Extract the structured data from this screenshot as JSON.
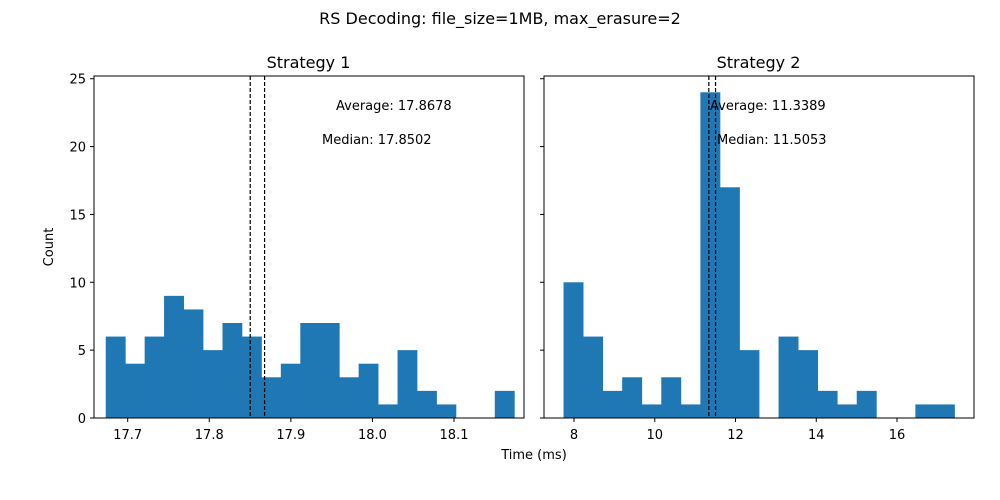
{
  "figure": {
    "title": "RS Decoding: file_size=1MB, max_erasure=2",
    "xlabel": "Time (ms)",
    "ylabel": "Count"
  },
  "chart_data": [
    {
      "type": "bar",
      "title": "Strategy 1",
      "xlim": [
        17.6587,
        18.1858
      ],
      "ylim": [
        0,
        25.2
      ],
      "xticks": [
        17.7,
        17.8,
        17.9,
        18.0,
        18.1
      ],
      "xtick_labels": [
        "17.7",
        "17.8",
        "17.9",
        "18.0",
        "18.1"
      ],
      "yticks": [
        0,
        5,
        10,
        15,
        20,
        25
      ],
      "ytick_labels": [
        "0",
        "5",
        "10",
        "15",
        "20",
        "25"
      ],
      "bin_edges": [
        17.6731,
        17.697,
        17.7208,
        17.7446,
        17.7685,
        17.7923,
        17.8162,
        17.84,
        17.8639,
        17.8877,
        17.9116,
        17.9354,
        17.9593,
        17.9831,
        18.0069,
        18.0308,
        18.0546,
        18.0785,
        18.1023,
        18.1262,
        18.15,
        18.1739
      ],
      "counts": [
        6,
        4,
        6,
        9,
        8,
        5,
        7,
        6,
        3,
        4,
        7,
        7,
        3,
        4,
        1,
        5,
        2,
        1,
        0,
        0,
        2
      ],
      "average": 17.8678,
      "median": 17.8502,
      "average_text": "Average: 17.8678",
      "median_text": "Median: 17.8502",
      "bar_color": "#1f77b4",
      "grid": false
    },
    {
      "type": "bar",
      "title": "Strategy 2",
      "xlim": [
        7.2561,
        17.9073
      ],
      "ylim": [
        0,
        25.2
      ],
      "xticks": [
        8,
        10,
        12,
        14,
        16
      ],
      "xtick_labels": [
        "8",
        "10",
        "12",
        "14",
        "16"
      ],
      "yticks": [
        0,
        5,
        10,
        15,
        20,
        25
      ],
      "bin_edges": [
        7.7402,
        8.2244,
        8.7085,
        9.1927,
        9.6768,
        10.161,
        10.6451,
        11.1293,
        11.6134,
        12.0976,
        12.5817,
        13.0659,
        13.55,
        14.0341,
        14.5183,
        15.0024,
        15.4866,
        15.9707,
        16.4549,
        16.939,
        17.4232
      ],
      "counts": [
        10,
        6,
        2,
        3,
        1,
        3,
        1,
        24,
        17,
        5,
        0,
        6,
        5,
        2,
        1,
        2,
        0,
        0,
        1,
        1
      ],
      "average": 11.3389,
      "median": 11.5053,
      "average_text": "Average: 11.3389",
      "median_text": "Median: 11.5053",
      "bar_color": "#1f77b4",
      "grid": false
    }
  ]
}
